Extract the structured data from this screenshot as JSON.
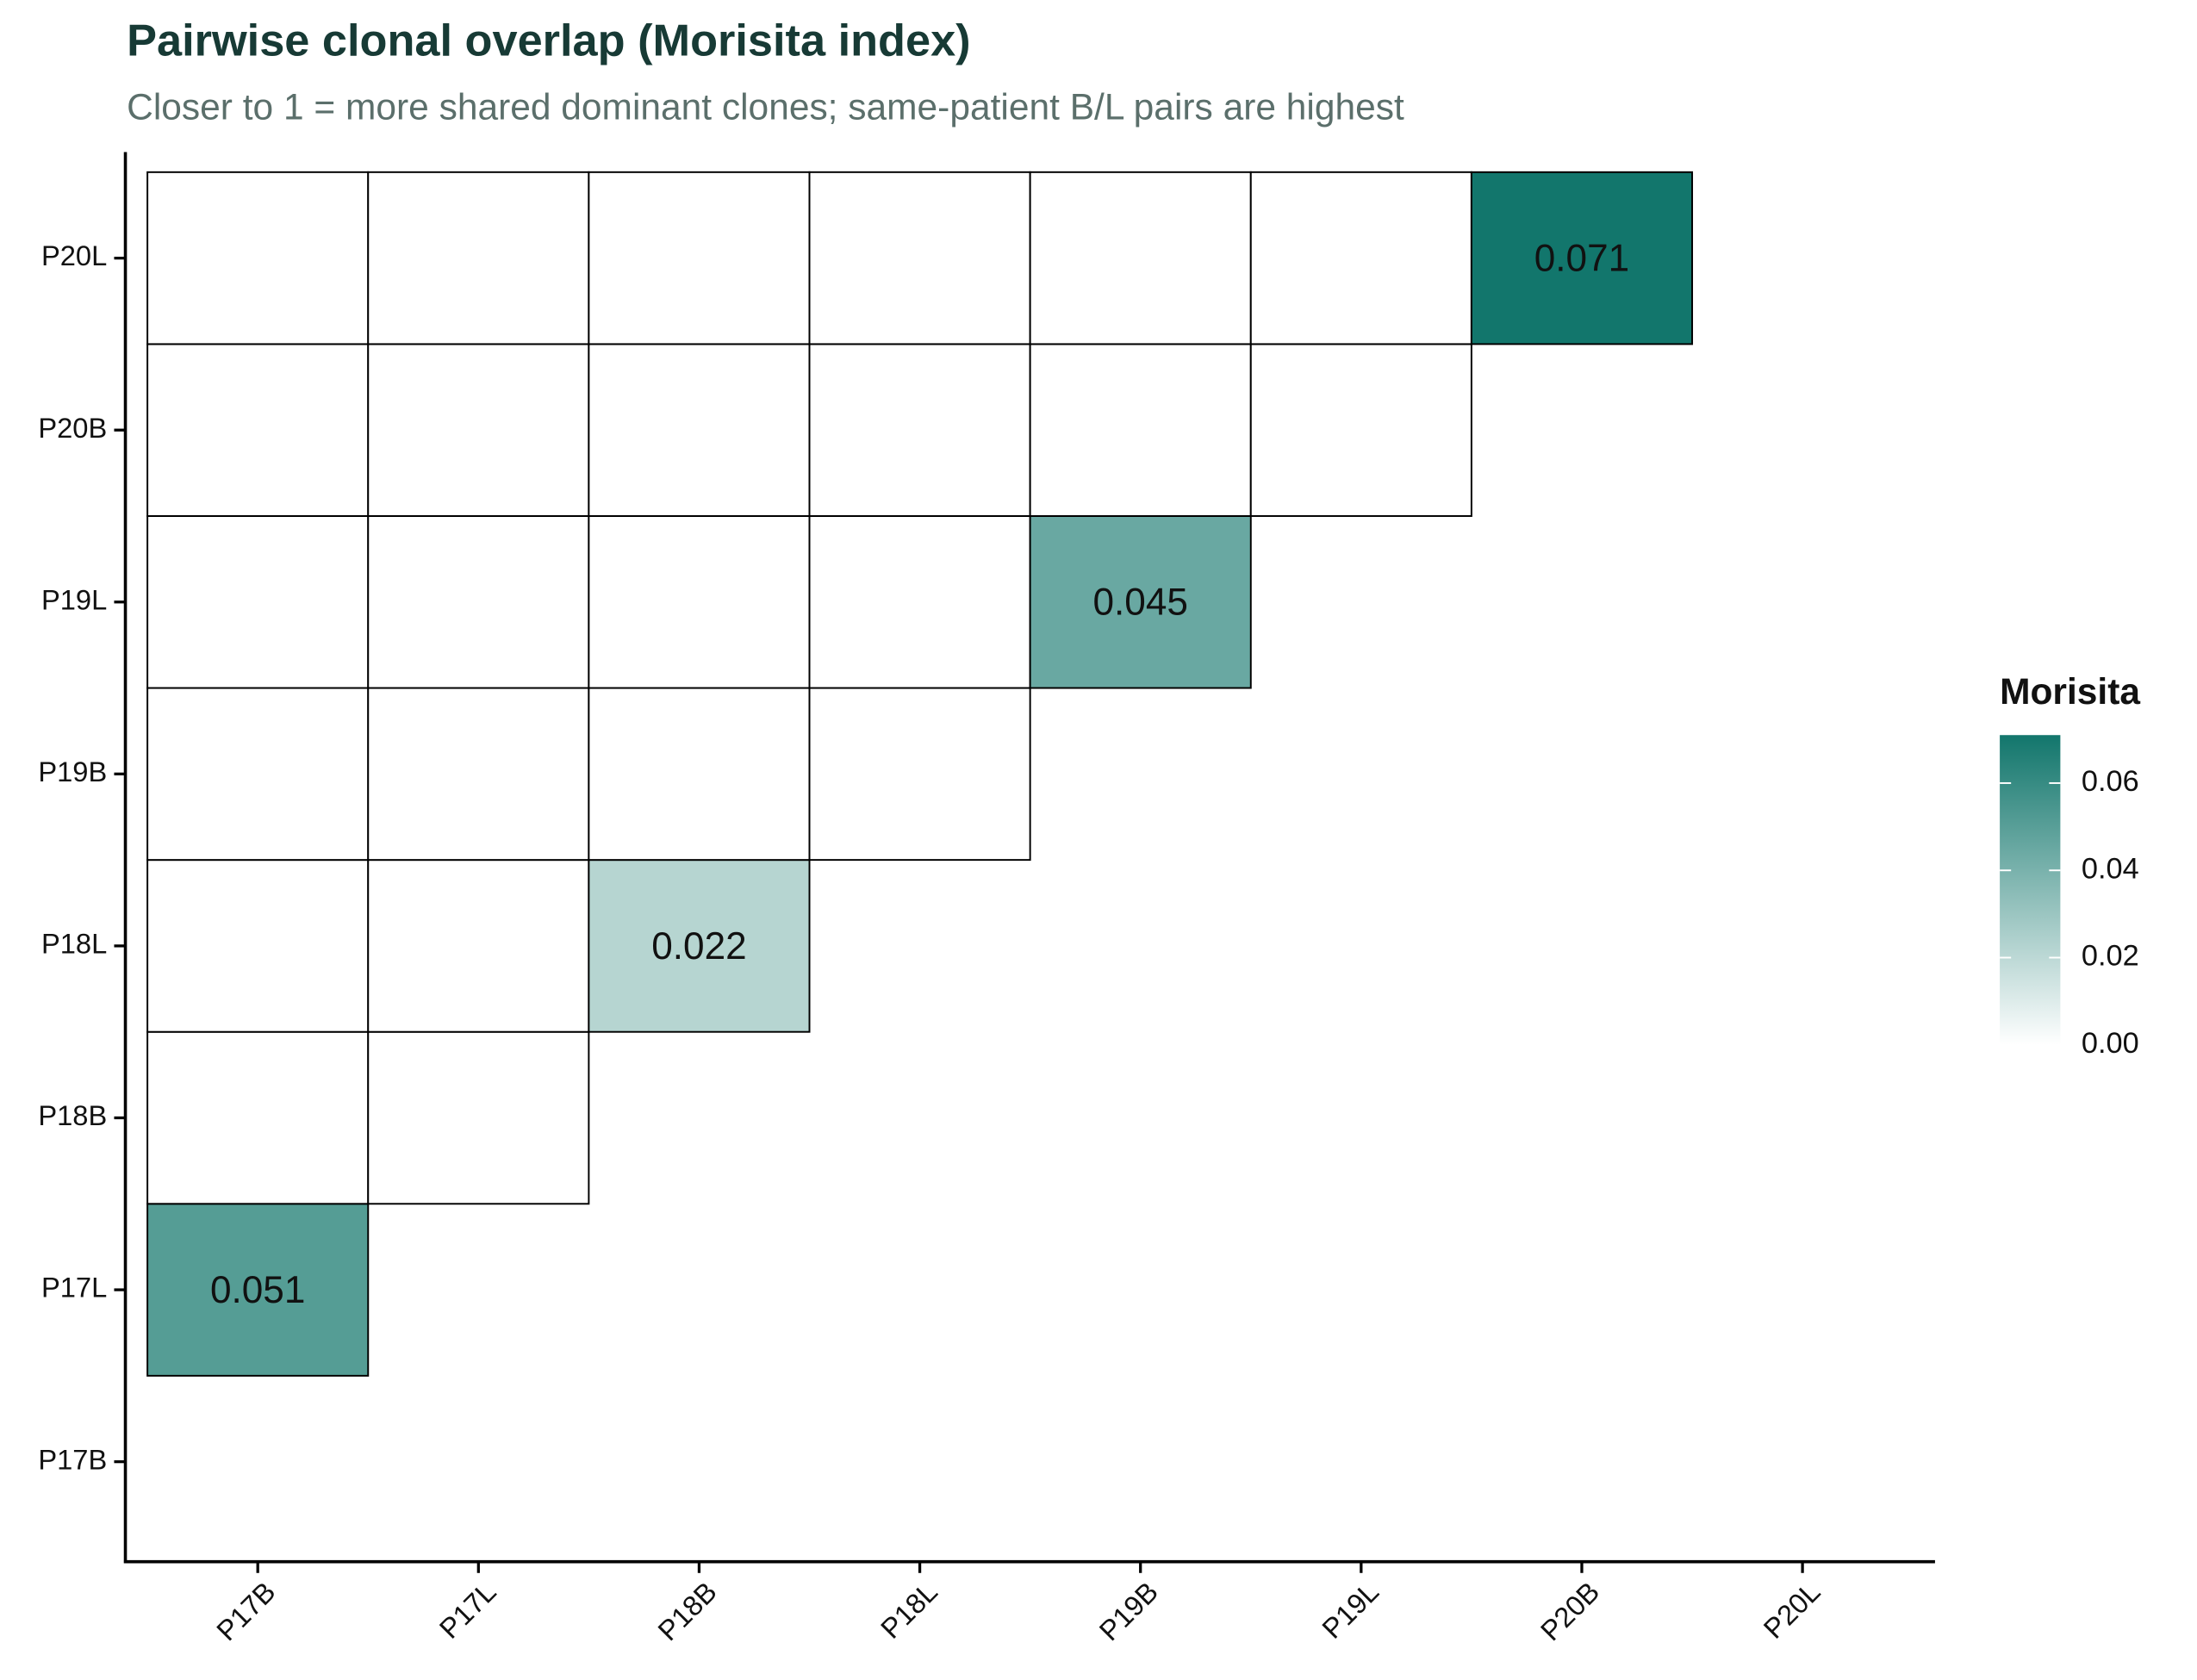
{
  "chart_data": {
    "type": "heatmap",
    "title": "Pairwise clonal overlap (Morisita index)",
    "subtitle": "Closer to 1 = more shared dominant clones; same-patient B/L pairs are highest",
    "x_categories": [
      "P17B",
      "P17L",
      "P18B",
      "P18L",
      "P19B",
      "P19L",
      "P20B",
      "P20L"
    ],
    "y_categories": [
      "P17B",
      "P17L",
      "P18B",
      "P18L",
      "P19B",
      "P19L",
      "P20B",
      "P20L"
    ],
    "values": [
      [
        null,
        null,
        null,
        null,
        null,
        null,
        null,
        null
      ],
      [
        0.051,
        null,
        null,
        null,
        null,
        null,
        null,
        null
      ],
      [
        0,
        0,
        null,
        null,
        null,
        null,
        null,
        null
      ],
      [
        0,
        0,
        0.022,
        null,
        null,
        null,
        null,
        null
      ],
      [
        0,
        0,
        0,
        0,
        null,
        null,
        null,
        null
      ],
      [
        0,
        0,
        0,
        0,
        0.045,
        null,
        null,
        null
      ],
      [
        0,
        0,
        0,
        0,
        0,
        0,
        null,
        null
      ],
      [
        0,
        0,
        0,
        0,
        0,
        0,
        0.071,
        null
      ]
    ],
    "legend_title": "Morisita",
    "colorscale": [
      "#ffffff",
      "#12766c"
    ],
    "clim": [
      0,
      0.071
    ],
    "cticks": [
      {
        "value": 0,
        "label": "0.00"
      },
      {
        "value": 0.02,
        "label": "0.02"
      },
      {
        "value": 0.04,
        "label": "0.04"
      },
      {
        "value": 0.06,
        "label": "0.06"
      }
    ]
  }
}
